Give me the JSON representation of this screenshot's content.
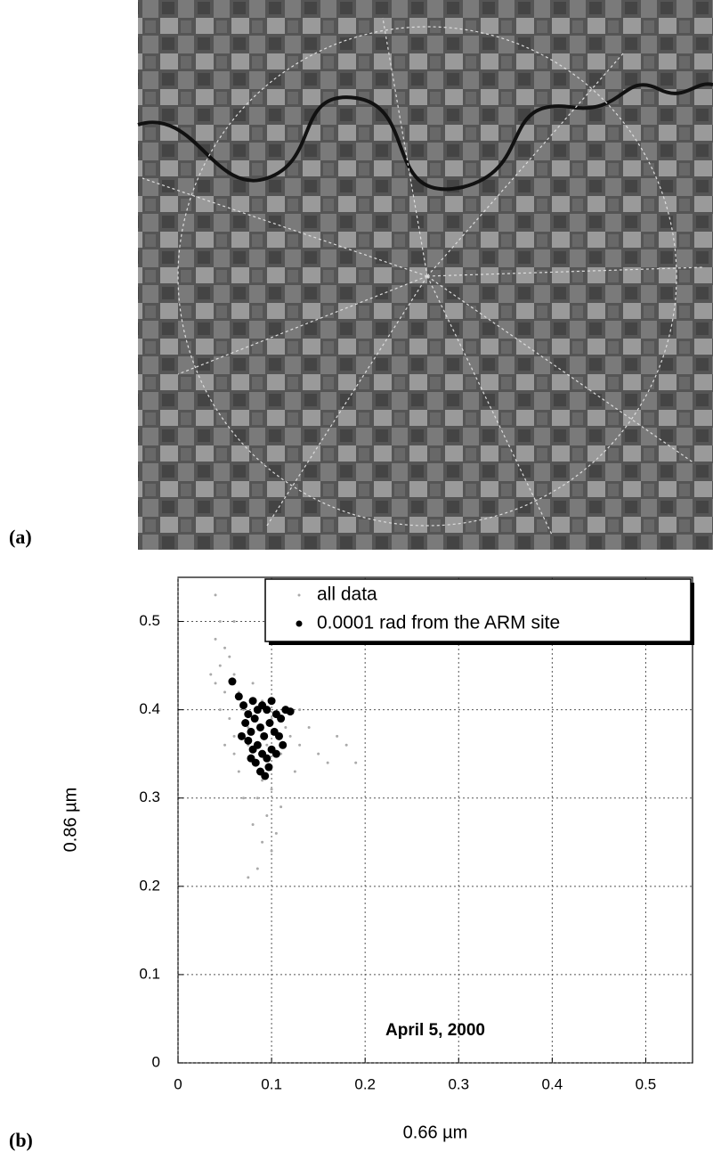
{
  "chart_data": {
    "type": "scatter",
    "panel_labels": [
      "(a)",
      "(b)"
    ],
    "annotation": "April 5, 2000",
    "xlabel": "0.66 µm",
    "ylabel": "0.86 µm",
    "xlim": [
      0,
      0.55
    ],
    "ylim": [
      0,
      0.55
    ],
    "xticks": [
      0,
      0.1,
      0.2,
      0.3,
      0.4,
      0.5
    ],
    "yticks": [
      0,
      0.1,
      0.2,
      0.3,
      0.4,
      0.5
    ],
    "grid": true,
    "legend": "upper right",
    "series": [
      {
        "name": "all data",
        "color": "#aaaaaa",
        "x": [
          0.04,
          0.045,
          0.04,
          0.05,
          0.045,
          0.055,
          0.06,
          0.04,
          0.05,
          0.065,
          0.045,
          0.055,
          0.07,
          0.06,
          0.075,
          0.08,
          0.09,
          0.085,
          0.1,
          0.095,
          0.08,
          0.09,
          0.1,
          0.085,
          0.075,
          0.11,
          0.12,
          0.13,
          0.14,
          0.15,
          0.16,
          0.18,
          0.19,
          0.17,
          0.125,
          0.11,
          0.105,
          0.065,
          0.07,
          0.05,
          0.035,
          0.06,
          0.08,
          0.09,
          0.1,
          0.115,
          0.13,
          0.06,
          0.075,
          0.095
        ],
        "y": [
          0.53,
          0.5,
          0.48,
          0.47,
          0.45,
          0.46,
          0.44,
          0.43,
          0.42,
          0.42,
          0.4,
          0.39,
          0.4,
          0.37,
          0.36,
          0.34,
          0.32,
          0.3,
          0.31,
          0.28,
          0.27,
          0.25,
          0.24,
          0.22,
          0.21,
          0.35,
          0.37,
          0.36,
          0.38,
          0.35,
          0.34,
          0.36,
          0.34,
          0.37,
          0.33,
          0.29,
          0.26,
          0.33,
          0.3,
          0.36,
          0.44,
          0.5,
          0.43,
          0.41,
          0.39,
          0.38,
          0.4,
          0.35,
          0.38,
          0.36
        ]
      },
      {
        "name": "0.0001 rad from the ARM site",
        "color": "#000000",
        "x": [
          0.058,
          0.065,
          0.07,
          0.075,
          0.08,
          0.085,
          0.09,
          0.095,
          0.1,
          0.105,
          0.11,
          0.115,
          0.12,
          0.072,
          0.078,
          0.082,
          0.088,
          0.092,
          0.098,
          0.103,
          0.108,
          0.075,
          0.08,
          0.085,
          0.09,
          0.095,
          0.1,
          0.105,
          0.083,
          0.088,
          0.093,
          0.097,
          0.078,
          0.112,
          0.068
        ],
        "y": [
          0.432,
          0.415,
          0.405,
          0.395,
          0.41,
          0.4,
          0.405,
          0.4,
          0.41,
          0.395,
          0.39,
          0.4,
          0.398,
          0.385,
          0.375,
          0.39,
          0.38,
          0.37,
          0.385,
          0.375,
          0.37,
          0.365,
          0.355,
          0.36,
          0.35,
          0.345,
          0.355,
          0.35,
          0.34,
          0.33,
          0.325,
          0.335,
          0.345,
          0.36,
          0.37
        ]
      }
    ]
  }
}
